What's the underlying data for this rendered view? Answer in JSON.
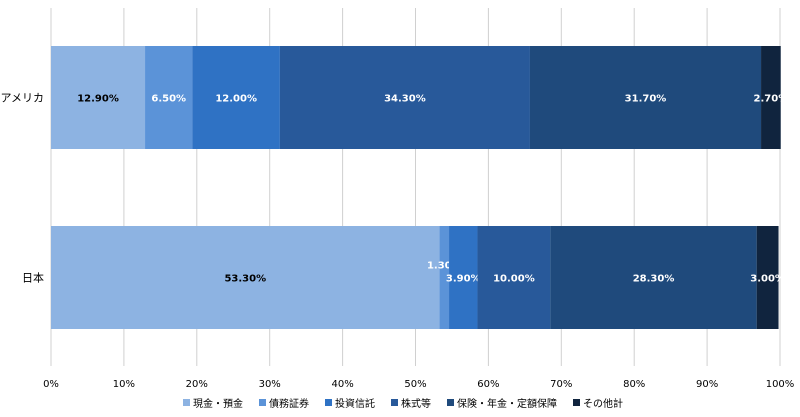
{
  "chart_data": {
    "type": "bar",
    "orientation": "horizontal",
    "stacked": true,
    "categories": [
      "アメリカ",
      "日本"
    ],
    "series": [
      {
        "name": "現金・預金",
        "values": [
          12.9,
          53.3
        ],
        "color": "#8db3e2"
      },
      {
        "name": "債務証券",
        "values": [
          6.5,
          1.3
        ],
        "color": "#5b93d8"
      },
      {
        "name": "投資信託",
        "values": [
          12.0,
          3.9
        ],
        "color": "#2f72c4"
      },
      {
        "name": "株式等",
        "values": [
          34.3,
          10.0
        ],
        "color": "#28599a"
      },
      {
        "name": "保険・年金・定額保障",
        "values": [
          31.7,
          28.3
        ],
        "color": "#1f4a7c"
      },
      {
        "name": "その他計",
        "values": [
          2.7,
          3.0
        ],
        "color": "#10243e"
      }
    ],
    "data_labels": [
      [
        "12.90%",
        "6.50%",
        "12.00%",
        "34.30%",
        "31.70%",
        "2.70%"
      ],
      [
        "53.30%",
        "1.30%",
        "3.90%",
        "10.00%",
        "28.30%",
        "3.00%"
      ]
    ],
    "xlim": [
      0,
      100
    ],
    "x_ticks": [
      "0%",
      "10%",
      "20%",
      "30%",
      "40%",
      "50%",
      "60%",
      "70%",
      "80%",
      "90%",
      "100%"
    ],
    "grid": true,
    "legend": "bottom"
  }
}
